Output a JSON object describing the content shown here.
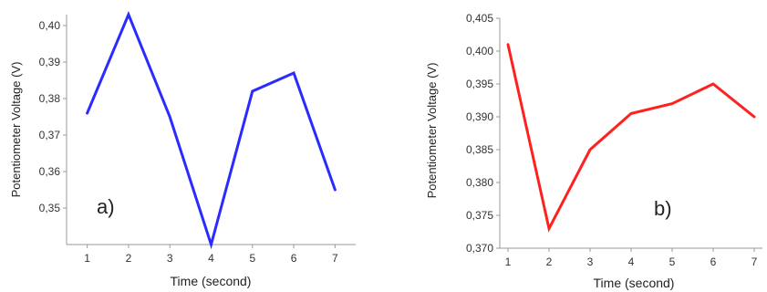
{
  "chart_data": [
    {
      "type": "line",
      "panel_label": "a)",
      "xlabel": "Time (second)",
      "ylabel": "Potentiometer Voltage (V)",
      "x": [
        1,
        2,
        3,
        4,
        5,
        6,
        7
      ],
      "series": [
        {
          "values": [
            0.376,
            0.403,
            0.375,
            0.34,
            0.382,
            0.387,
            0.355
          ],
          "color": "#2b2bff"
        }
      ],
      "xlim": [
        0.5,
        7.5
      ],
      "ylim": [
        0.34,
        0.403
      ],
      "yticks": [
        0.35,
        0.36,
        0.37,
        0.38,
        0.39,
        0.4
      ],
      "ytick_labels": [
        "0,35",
        "0,36",
        "0,37",
        "0,38",
        "0,39",
        "0,40"
      ],
      "xticks": [
        "1",
        "2",
        "3",
        "4",
        "5",
        "6",
        "7"
      ],
      "grid": false
    },
    {
      "type": "line",
      "panel_label": "b)",
      "xlabel": "Time (second)",
      "ylabel": "Potentiometer Voltage (V)",
      "x": [
        1,
        2,
        3,
        4,
        5,
        6,
        7
      ],
      "series": [
        {
          "values": [
            0.401,
            0.373,
            0.385,
            0.3905,
            0.392,
            0.395,
            0.39
          ],
          "color": "#ff2020"
        }
      ],
      "xlim": [
        0.8,
        7.2
      ],
      "ylim": [
        0.37,
        0.405
      ],
      "yticks": [
        0.37,
        0.375,
        0.38,
        0.385,
        0.39,
        0.395,
        0.4,
        0.405
      ],
      "ytick_labels": [
        "0,370",
        "0,375",
        "0,380",
        "0,385",
        "0,390",
        "0,395",
        "0,400",
        "0,405"
      ],
      "xticks": [
        "1",
        "2",
        "3",
        "4",
        "5",
        "6",
        "7"
      ],
      "grid": false
    }
  ]
}
